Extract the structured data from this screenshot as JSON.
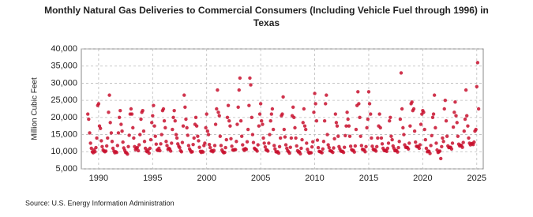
{
  "chart_data": {
    "type": "scatter",
    "title": "Monthly Natural Gas Deliveries to Commercial Consumers (Including Vehicle Fuel through 1996) in Texas",
    "y_label": "Million Cubic Feet",
    "source": "Source: U.S. Energy Information Administration",
    "xlim": [
      1988.4,
      2025.6
    ],
    "xticks": [
      1990,
      1995,
      2000,
      2005,
      2010,
      2015,
      2020,
      2025
    ],
    "ylim": [
      5000,
      40000
    ],
    "yticks": [
      {
        "value": 5000,
        "label": "5,000"
      },
      {
        "value": 10000,
        "label": "10,000"
      },
      {
        "value": 15000,
        "label": "15,000"
      },
      {
        "value": 20000,
        "label": "20,000"
      },
      {
        "value": 25000,
        "label": "25,000"
      },
      {
        "value": 30000,
        "label": "30,000"
      },
      {
        "value": 35000,
        "label": "35,000"
      },
      {
        "value": 40000,
        "label": "40,000"
      }
    ],
    "grid": true,
    "color": "#c8102e",
    "x": [
      1989,
      1989.08,
      1989.17,
      1989.25,
      1989.33,
      1989.42,
      1989.5,
      1989.58,
      1989.67,
      1989.75,
      1989.83,
      1989.92,
      1990,
      1990.08,
      1990.17,
      1990.25,
      1990.33,
      1990.42,
      1990.5,
      1990.58,
      1990.67,
      1990.75,
      1990.83,
      1990.92,
      1991,
      1991.08,
      1991.17,
      1991.25,
      1991.33,
      1991.42,
      1991.5,
      1991.58,
      1991.67,
      1991.75,
      1991.83,
      1991.92,
      1992,
      1992.08,
      1992.17,
      1992.25,
      1992.33,
      1992.42,
      1992.5,
      1992.58,
      1992.67,
      1992.75,
      1992.83,
      1992.92,
      1993,
      1993.08,
      1993.17,
      1993.25,
      1993.33,
      1993.42,
      1993.5,
      1993.58,
      1993.67,
      1993.75,
      1993.83,
      1993.92,
      1994,
      1994.08,
      1994.17,
      1994.25,
      1994.33,
      1994.42,
      1994.5,
      1994.58,
      1994.67,
      1994.75,
      1994.83,
      1994.92,
      1995,
      1995.08,
      1995.17,
      1995.25,
      1995.33,
      1995.42,
      1995.5,
      1995.58,
      1995.67,
      1995.75,
      1995.83,
      1995.92,
      1996,
      1996.08,
      1996.17,
      1996.25,
      1996.33,
      1996.42,
      1996.5,
      1996.58,
      1996.67,
      1996.75,
      1996.83,
      1996.92,
      1997,
      1997.08,
      1997.17,
      1997.25,
      1997.33,
      1997.42,
      1997.5,
      1997.58,
      1997.67,
      1997.75,
      1997.83,
      1997.92,
      1998,
      1998.08,
      1998.17,
      1998.25,
      1998.33,
      1998.42,
      1998.5,
      1998.58,
      1998.67,
      1998.75,
      1998.83,
      1998.92,
      1999,
      1999.08,
      1999.17,
      1999.25,
      1999.33,
      1999.42,
      1999.5,
      1999.58,
      1999.67,
      1999.75,
      1999.83,
      1999.92,
      2000,
      2000.08,
      2000.17,
      2000.25,
      2000.33,
      2000.42,
      2000.5,
      2000.58,
      2000.67,
      2000.75,
      2000.83,
      2000.92,
      2001,
      2001.08,
      2001.17,
      2001.25,
      2001.33,
      2001.42,
      2001.5,
      2001.58,
      2001.67,
      2001.75,
      2001.83,
      2001.92,
      2002,
      2002.08,
      2002.17,
      2002.25,
      2002.33,
      2002.42,
      2002.5,
      2002.58,
      2002.67,
      2002.75,
      2002.83,
      2002.92,
      2003,
      2003.08,
      2003.17,
      2003.25,
      2003.33,
      2003.42,
      2003.5,
      2003.58,
      2003.67,
      2003.75,
      2003.83,
      2003.92,
      2004,
      2004.08,
      2004.17,
      2004.25,
      2004.33,
      2004.42,
      2004.5,
      2004.58,
      2004.67,
      2004.75,
      2004.83,
      2004.92,
      2005,
      2005.08,
      2005.17,
      2005.25,
      2005.33,
      2005.42,
      2005.5,
      2005.58,
      2005.67,
      2005.75,
      2005.83,
      2005.92,
      2006,
      2006.08,
      2006.17,
      2006.25,
      2006.33,
      2006.42,
      2006.5,
      2006.58,
      2006.67,
      2006.75,
      2006.83,
      2006.92,
      2007,
      2007.08,
      2007.17,
      2007.25,
      2007.33,
      2007.42,
      2007.5,
      2007.58,
      2007.67,
      2007.75,
      2007.83,
      2007.92,
      2008,
      2008.08,
      2008.17,
      2008.25,
      2008.33,
      2008.42,
      2008.5,
      2008.58,
      2008.67,
      2008.75,
      2008.83,
      2008.92,
      2009,
      2009.08,
      2009.17,
      2009.25,
      2009.33,
      2009.42,
      2009.5,
      2009.58,
      2009.67,
      2009.75,
      2009.83,
      2009.92,
      2010,
      2010.08,
      2010.17,
      2010.25,
      2010.33,
      2010.42,
      2010.5,
      2010.58,
      2010.67,
      2010.75,
      2010.83,
      2010.92,
      2011,
      2011.08,
      2011.17,
      2011.25,
      2011.33,
      2011.42,
      2011.5,
      2011.58,
      2011.67,
      2011.75,
      2011.83,
      2011.92,
      2012,
      2012.08,
      2012.17,
      2012.25,
      2012.33,
      2012.42,
      2012.5,
      2012.58,
      2012.67,
      2012.75,
      2012.83,
      2012.92,
      2013,
      2013.08,
      2013.17,
      2013.25,
      2013.33,
      2013.42,
      2013.5,
      2013.58,
      2013.67,
      2013.75,
      2013.83,
      2013.92,
      2014,
      2014.08,
      2014.17,
      2014.25,
      2014.33,
      2014.42,
      2014.5,
      2014.58,
      2014.67,
      2014.75,
      2014.83,
      2014.92,
      2015,
      2015.08,
      2015.17,
      2015.25,
      2015.33,
      2015.42,
      2015.5,
      2015.58,
      2015.67,
      2015.75,
      2015.83,
      2015.92,
      2016,
      2016.08,
      2016.17,
      2016.25,
      2016.33,
      2016.42,
      2016.5,
      2016.58,
      2016.67,
      2016.75,
      2016.83,
      2016.92,
      2017,
      2017.08,
      2017.17,
      2017.25,
      2017.33,
      2017.42,
      2017.5,
      2017.58,
      2017.67,
      2017.75,
      2017.83,
      2017.92,
      2018,
      2018.08,
      2018.17,
      2018.25,
      2018.33,
      2018.42,
      2018.5,
      2018.58,
      2018.67,
      2018.75,
      2018.83,
      2018.92,
      2019,
      2019.08,
      2019.17,
      2019.25,
      2019.33,
      2019.42,
      2019.5,
      2019.58,
      2019.67,
      2019.75,
      2019.83,
      2019.92,
      2020,
      2020.08,
      2020.17,
      2020.25,
      2020.33,
      2020.42,
      2020.5,
      2020.58,
      2020.67,
      2020.75,
      2020.83,
      2020.92,
      2021,
      2021.08,
      2021.17,
      2021.25,
      2021.33,
      2021.42,
      2021.5,
      2021.58,
      2021.67,
      2021.75,
      2021.83,
      2021.92,
      2022,
      2022.08,
      2022.17,
      2022.25,
      2022.33,
      2022.42,
      2022.5,
      2022.58,
      2022.67,
      2022.75,
      2022.83,
      2022.92,
      2023,
      2023.08,
      2023.17,
      2023.25,
      2023.33,
      2023.42,
      2023.5,
      2023.58,
      2023.67,
      2023.75,
      2023.83,
      2023.92,
      2024,
      2024.08,
      2024.17,
      2024.25,
      2024.33,
      2024.42,
      2024.5,
      2024.58,
      2024.67,
      2024.75,
      2024.83,
      2024.92,
      2025,
      2025.08,
      2025.17
    ],
    "values": [
      21000,
      19500,
      15500,
      12500,
      11000,
      10000,
      9700,
      10500,
      10000,
      11200,
      14000,
      23500,
      24000,
      17500,
      16800,
      13200,
      11500,
      10500,
      10200,
      10000,
      10200,
      11700,
      14000,
      21500,
      26500,
      18500,
      15500,
      13000,
      11000,
      10200,
      9700,
      10000,
      9800,
      11800,
      15500,
      20000,
      22000,
      18000,
      16000,
      12800,
      11100,
      10400,
      9800,
      9700,
      9300,
      11500,
      14800,
      21000,
      22500,
      21000,
      17000,
      14000,
      11500,
      10600,
      11000,
      11200,
      10300,
      12000,
      15000,
      19500,
      21500,
      22000,
      16000,
      13000,
      11000,
      10200,
      10000,
      10500,
      9600,
      11000,
      13500,
      18500,
      20500,
      23500,
      17500,
      14500,
      12200,
      10500,
      10400,
      11000,
      10300,
      12300,
      15000,
      22000,
      22500,
      19000,
      17000,
      13000,
      11800,
      10700,
      11000,
      10800,
      10200,
      12500,
      16500,
      20000,
      22000,
      19000,
      15000,
      14000,
      12300,
      11600,
      11200,
      10300,
      10000,
      12700,
      17500,
      26500,
      23000,
      19500,
      17000,
      14800,
      11800,
      10800,
      10300,
      9900,
      10000,
      12100,
      14000,
      18000,
      20000,
      17500,
      14500,
      13200,
      11300,
      10100,
      9800,
      10100,
      9900,
      11800,
      12500,
      17000,
      21000,
      16000,
      15000,
      12100,
      11200,
      10200,
      10300,
      10000,
      10400,
      11800,
      18000,
      22500,
      28000,
      21500,
      20500,
      14500,
      11800,
      10500,
      10000,
      9700,
      9800,
      11200,
      13500,
      20000,
      23500,
      19000,
      17500,
      13800,
      11600,
      10500,
      10500,
      10600,
      10600,
      13000,
      18000,
      23000,
      28000,
      31500,
      19000,
      14500,
      12000,
      10700,
      10400,
      10900,
      10700,
      12900,
      16500,
      23500,
      31500,
      29500,
      20000,
      15000,
      12700,
      11000,
      10700,
      10600,
      10200,
      12000,
      17500,
      21000,
      24000,
      19000,
      18000,
      14000,
      12500,
      11400,
      10500,
      10500,
      10200,
      12500,
      15000,
      19000,
      21000,
      22500,
      16500,
      11800,
      10800,
      10000,
      9900,
      10000,
      9600,
      11500,
      14000,
      20500,
      21000,
      26000,
      16500,
      14300,
      12000,
      11000,
      10300,
      10000,
      9600,
      11300,
      14000,
      20500,
      23000,
      20000,
      17000,
      14000,
      11700,
      10300,
      9900,
      10000,
      9400,
      11000,
      13500,
      18500,
      22500,
      17500,
      16500,
      12500,
      10700,
      9900,
      9600,
      9700,
      9700,
      11400,
      12900,
      21500,
      27000,
      24000,
      19000,
      13400,
      11200,
      10100,
      10000,
      9900,
      9700,
      10800,
      13000,
      19000,
      24000,
      26500,
      15000,
      12000,
      11200,
      10300,
      10200,
      10100,
      9800,
      11100,
      13800,
      21000,
      18500,
      17500,
      14500,
      11500,
      10800,
      10200,
      10100,
      10100,
      9800,
      11300,
      14700,
      17500,
      21500,
      19500,
      17500,
      14500,
      11600,
      10600,
      10400,
      10400,
      9900,
      11700,
      16500,
      23500,
      27500,
      24000,
      20000,
      14500,
      11800,
      10700,
      10600,
      10500,
      10000,
      11500,
      17000,
      19500,
      27500,
      24000,
      21000,
      14000,
      11600,
      10700,
      10500,
      10600,
      10200,
      11500,
      14000,
      17500,
      21000,
      17000,
      14000,
      12300,
      11000,
      10400,
      10300,
      10400,
      10100,
      11000,
      12500,
      19000,
      20000,
      14500,
      13500,
      11700,
      11000,
      10300,
      10400,
      10300,
      9900,
      11200,
      13000,
      19500,
      33000,
      22500,
      17000,
      15000,
      12000,
      11300,
      11300,
      11200,
      10800,
      12500,
      17500,
      24000,
      24500,
      22000,
      22500,
      16000,
      12800,
      11600,
      11500,
      11500,
      11000,
      12000,
      18000,
      21000,
      22000,
      21500,
      16500,
      13500,
      11000,
      10000,
      10200,
      10100,
      9500,
      11800,
      14700,
      20000,
      21000,
      26500,
      17000,
      12500,
      10500,
      9800,
      10000,
      10200,
      8000,
      11500,
      14000,
      13000,
      22500,
      25000,
      19000,
      14500,
      11700,
      11200,
      11300,
      11300,
      10800,
      12500,
      17200,
      21500,
      24500,
      20500,
      18500,
      14500,
      12200,
      11700,
      11900,
      11800,
      11300,
      12700,
      16000,
      19500,
      28000,
      20500,
      17500,
      14000,
      12500,
      12000,
      12300,
      12400,
      12100,
      12800,
      16000,
      16500,
      29000,
      36000,
      22500
    ]
  }
}
